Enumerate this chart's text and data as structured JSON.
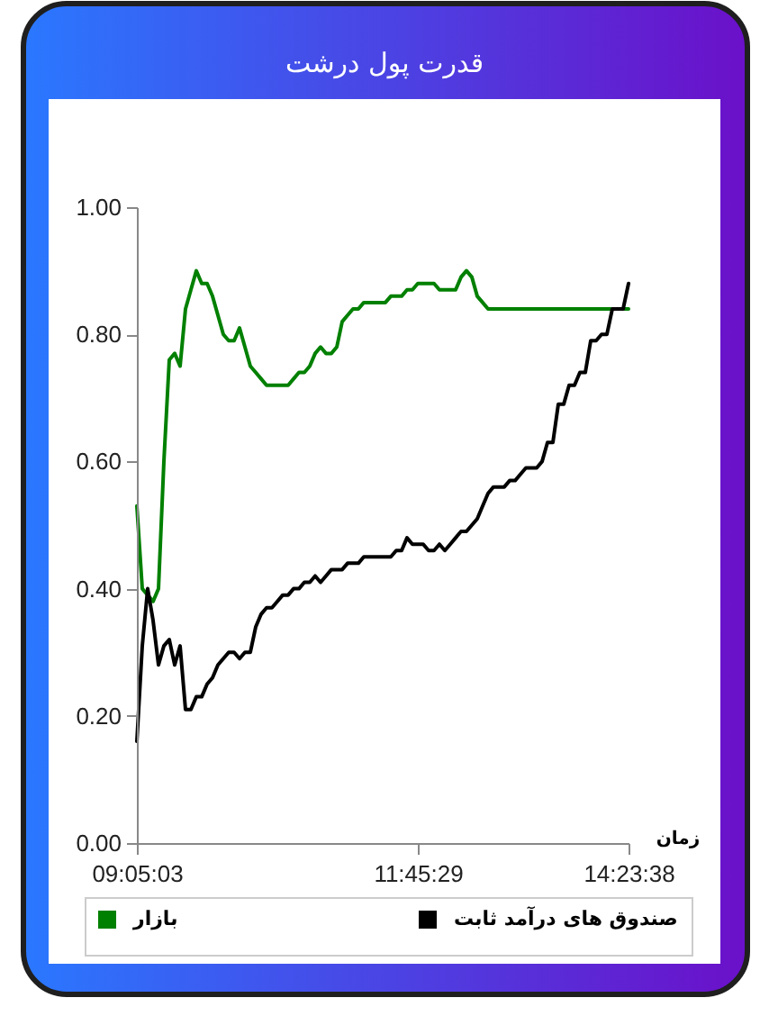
{
  "chart_data": {
    "type": "line",
    "title": "قدرت پول درشت",
    "xlabel": "زمان",
    "categories": [
      "09:05:03",
      null,
      null,
      null,
      null,
      null,
      null,
      null,
      null,
      null,
      null,
      null,
      null,
      null,
      null,
      null,
      null,
      null,
      null,
      null,
      null,
      null,
      null,
      null,
      null,
      null,
      null,
      null,
      null,
      null,
      null,
      null,
      null,
      null,
      null,
      null,
      null,
      null,
      null,
      null,
      null,
      null,
      null,
      null,
      null,
      null,
      null,
      null,
      null,
      null,
      null,
      null,
      "11:45:29",
      null,
      null,
      null,
      null,
      null,
      null,
      null,
      null,
      null,
      null,
      null,
      null,
      null,
      null,
      null,
      null,
      null,
      null,
      null,
      null,
      null,
      null,
      null,
      null,
      null,
      null,
      null,
      null,
      null,
      null,
      null,
      null,
      null,
      null,
      null,
      null,
      null,
      null,
      "14:23:38"
    ],
    "series": [
      {
        "name": "بازار",
        "color": "#008000",
        "values": [
          0.53,
          0.4,
          0.39,
          0.38,
          0.4,
          0.6,
          0.76,
          0.77,
          0.75,
          0.84,
          0.87,
          0.9,
          0.88,
          0.88,
          0.86,
          0.83,
          0.8,
          0.79,
          0.79,
          0.81,
          0.78,
          0.75,
          0.74,
          0.73,
          0.72,
          0.72,
          0.72,
          0.72,
          0.72,
          0.73,
          0.74,
          0.74,
          0.75,
          0.77,
          0.78,
          0.77,
          0.77,
          0.78,
          0.82,
          0.83,
          0.84,
          0.84,
          0.85,
          0.85,
          0.85,
          0.85,
          0.85,
          0.86,
          0.86,
          0.86,
          0.87,
          0.87,
          0.88,
          0.88,
          0.88,
          0.88,
          0.87,
          0.87,
          0.87,
          0.87,
          0.89,
          0.9,
          0.89,
          0.86,
          0.85,
          0.84,
          0.84,
          0.84,
          0.84,
          0.84,
          0.84,
          0.84,
          0.84,
          0.84,
          0.84,
          0.84,
          0.84,
          0.84,
          0.84,
          0.84,
          0.84,
          0.84,
          0.84,
          0.84,
          0.84,
          0.84,
          0.84,
          0.84,
          0.84,
          0.84,
          0.84,
          0.84
        ]
      },
      {
        "name": "صندوق های درآمد ثابت",
        "color": "#000000",
        "values": [
          0.16,
          0.31,
          0.4,
          0.35,
          0.28,
          0.31,
          0.32,
          0.28,
          0.31,
          0.21,
          0.21,
          0.23,
          0.23,
          0.25,
          0.26,
          0.28,
          0.29,
          0.3,
          0.3,
          0.29,
          0.3,
          0.3,
          0.34,
          0.36,
          0.37,
          0.37,
          0.38,
          0.39,
          0.39,
          0.4,
          0.4,
          0.41,
          0.41,
          0.42,
          0.41,
          0.42,
          0.43,
          0.43,
          0.43,
          0.44,
          0.44,
          0.44,
          0.45,
          0.45,
          0.45,
          0.45,
          0.45,
          0.45,
          0.46,
          0.46,
          0.48,
          0.47,
          0.47,
          0.47,
          0.46,
          0.46,
          0.47,
          0.46,
          0.47,
          0.48,
          0.49,
          0.49,
          0.5,
          0.51,
          0.53,
          0.55,
          0.56,
          0.56,
          0.56,
          0.57,
          0.57,
          0.58,
          0.59,
          0.59,
          0.59,
          0.6,
          0.63,
          0.63,
          0.69,
          0.69,
          0.72,
          0.72,
          0.74,
          0.74,
          0.79,
          0.79,
          0.8,
          0.8,
          0.84,
          0.84,
          0.84,
          0.88
        ]
      }
    ],
    "ylim": [
      0,
      1
    ],
    "yticks": [
      {
        "value": 0,
        "label": "0.00"
      },
      {
        "value": 0.2,
        "label": "0.20"
      },
      {
        "value": 0.4,
        "label": "0.40"
      },
      {
        "value": 0.6,
        "label": "0.60"
      },
      {
        "value": 0.8,
        "label": "0.80"
      },
      {
        "value": 1,
        "label": "1.00"
      }
    ],
    "legend": "bottom",
    "line_style": "solid"
  }
}
